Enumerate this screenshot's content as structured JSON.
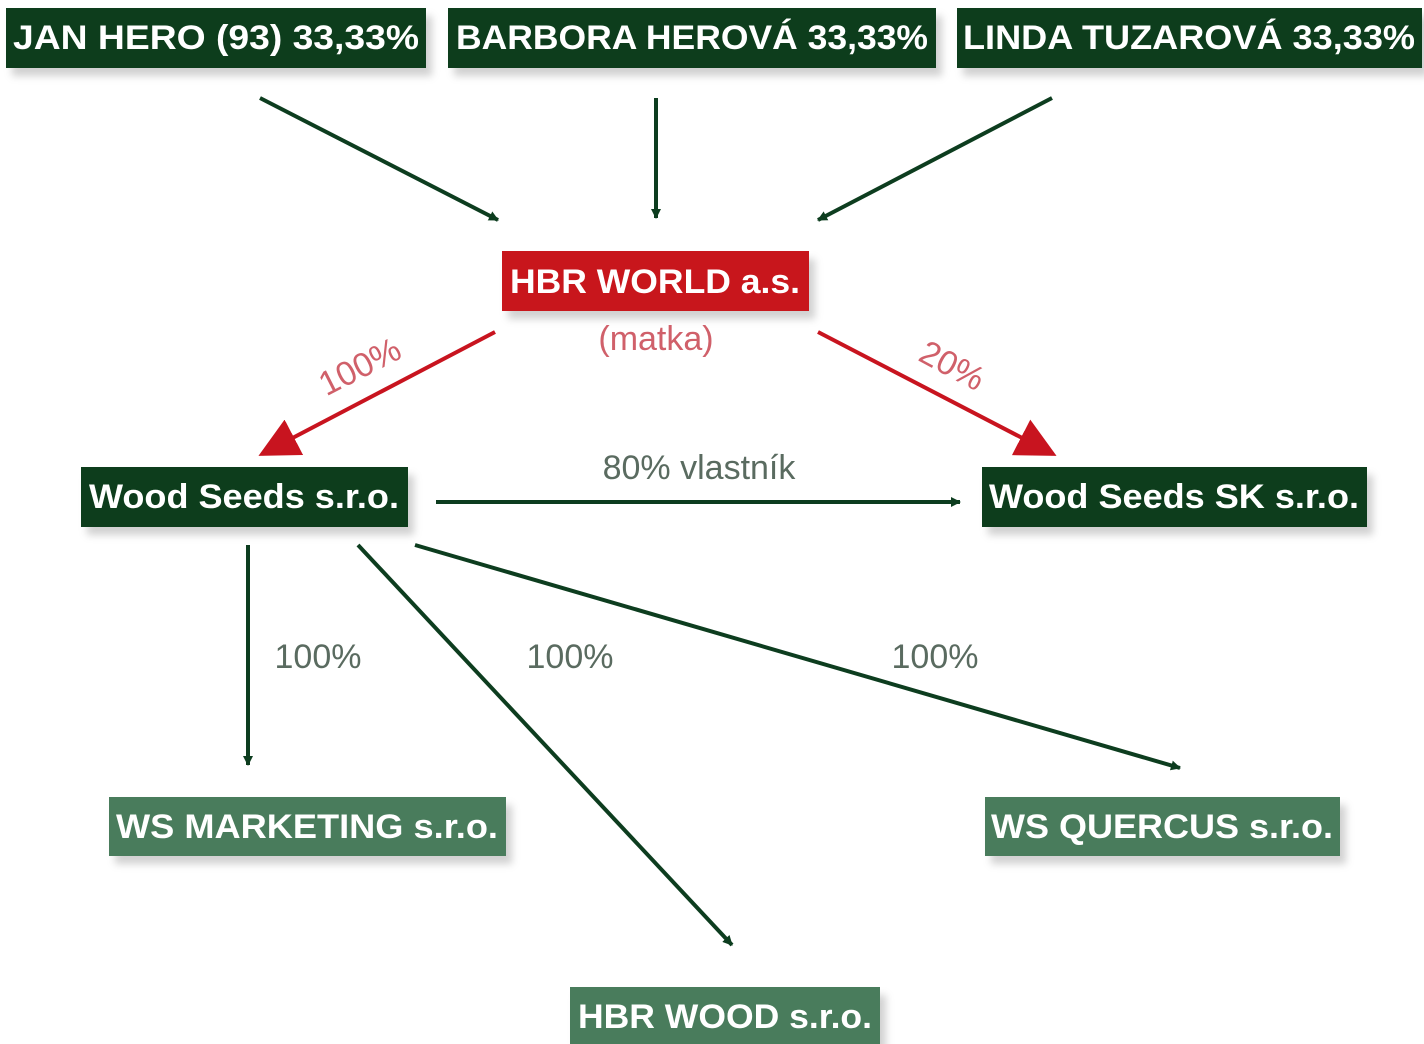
{
  "nodes": [
    {
      "label": "JAN HERO (93) 33,33%"
    },
    {
      "label": "BARBORA HEROVÁ 33,33%"
    },
    {
      "label": "LINDA TUZAROVÁ 33,33%"
    },
    {
      "label": "HBR WORLD a.s.",
      "note": "(matka)"
    },
    {
      "label": "Wood Seeds s.r.o."
    },
    {
      "label": "Wood Seeds SK s.r.o."
    },
    {
      "label": "WS MARKETING s.r.o."
    },
    {
      "label": "HBR WOOD s.r.o."
    },
    {
      "label": "WS QUERCUS s.r.o."
    }
  ],
  "edges": [
    {
      "label": "100%"
    },
    {
      "label": "20%"
    },
    {
      "label": "80% vlastník"
    },
    {
      "label": "100%"
    },
    {
      "label": "100%"
    },
    {
      "label": "100%"
    }
  ]
}
